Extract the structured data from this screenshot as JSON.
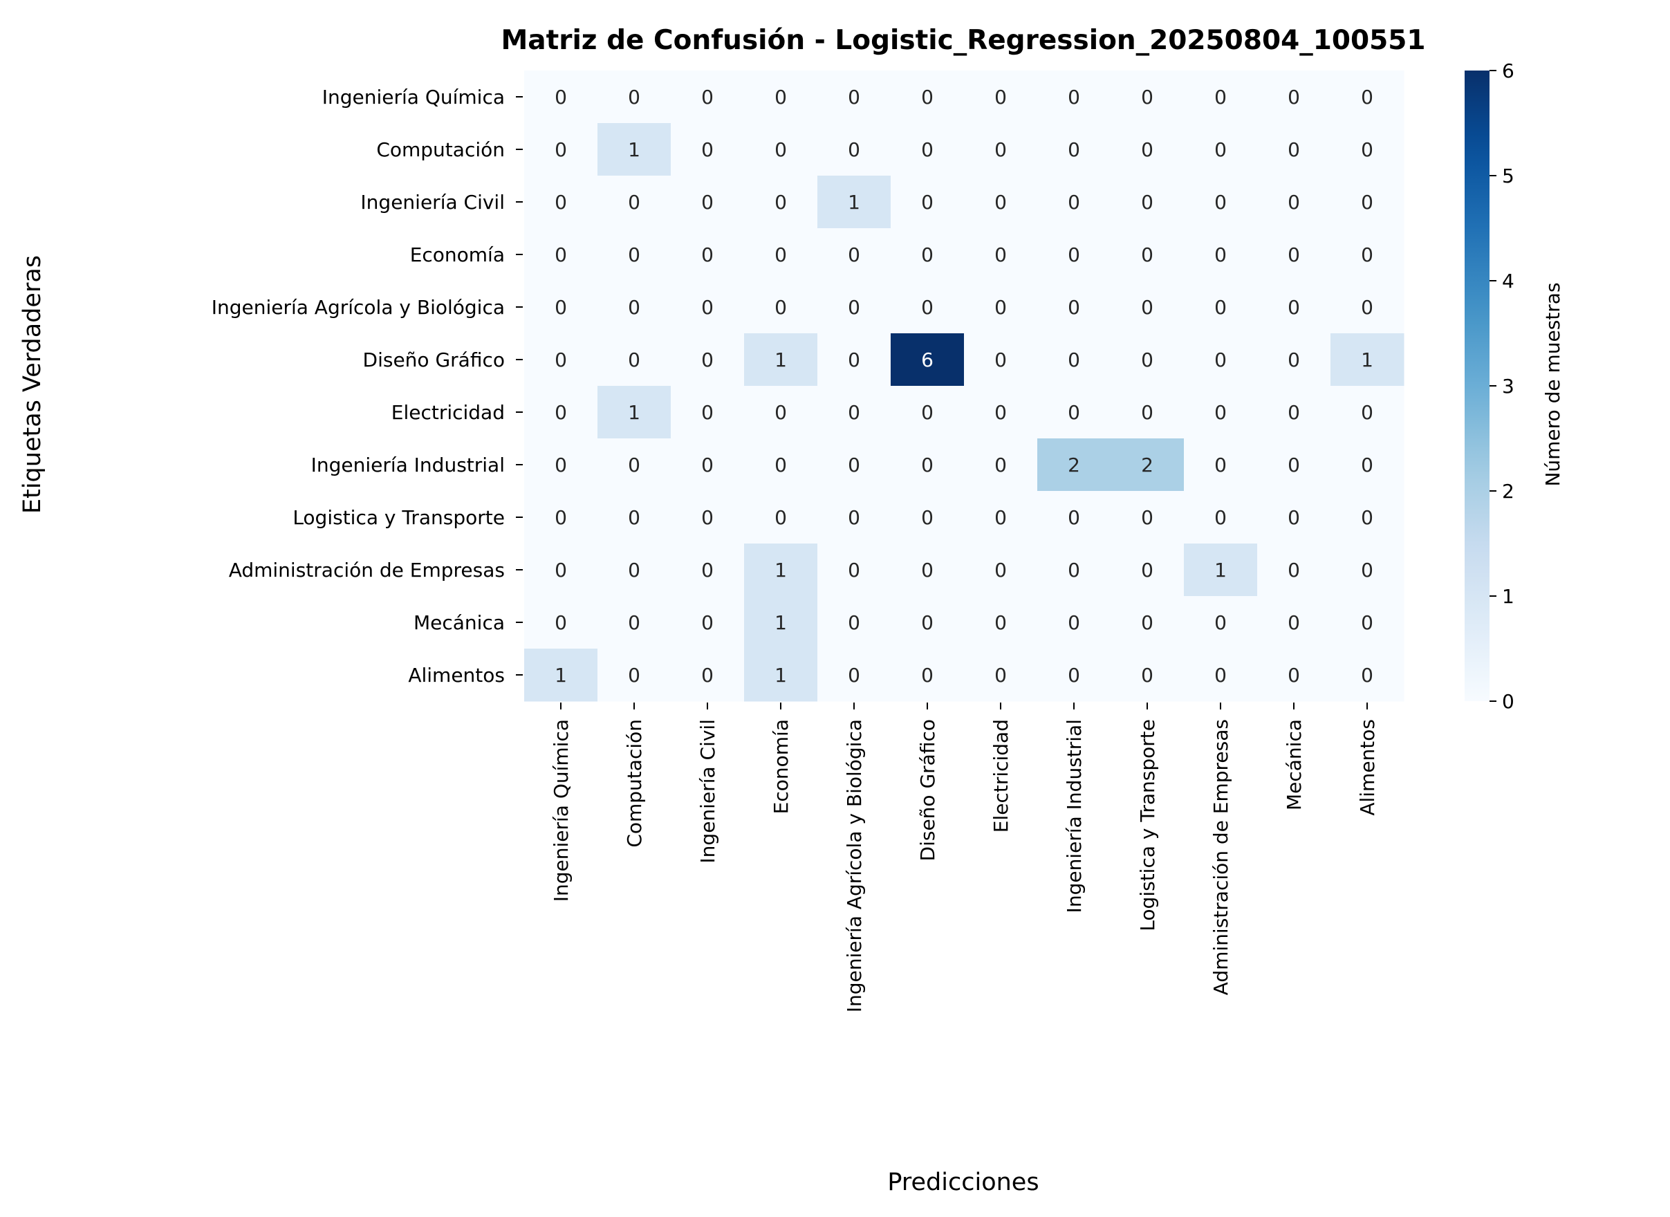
{
  "chart_data": {
    "type": "heatmap",
    "title": "Matriz de Confusión - Logistic_Regression_20250804_100551",
    "xlabel": "Predicciones",
    "ylabel": "Etiquetas Verdaderas",
    "row_labels": [
      "Ingeniería Química",
      "Computación",
      "Ingeniería  Civil",
      "Economía",
      "Ingeniería Agrícola y Biológica",
      "Diseño Gráfico",
      "Electricidad",
      "Ingeniería Industrial",
      "Logistica y Transporte",
      "Administración de Empresas",
      "Mecánica",
      "Alimentos"
    ],
    "col_labels": [
      "Ingeniería Química",
      "Computación",
      "Ingeniería  Civil",
      "Economía",
      "Ingeniería Agrícola y Biológica",
      "Diseño Gráfico",
      "Electricidad",
      "Ingeniería Industrial",
      "Logistica y Transporte",
      "Administración de Empresas",
      "Mecánica",
      "Alimentos"
    ],
    "values": [
      [
        0,
        0,
        0,
        0,
        0,
        0,
        0,
        0,
        0,
        0,
        0,
        0
      ],
      [
        0,
        1,
        0,
        0,
        0,
        0,
        0,
        0,
        0,
        0,
        0,
        0
      ],
      [
        0,
        0,
        0,
        0,
        1,
        0,
        0,
        0,
        0,
        0,
        0,
        0
      ],
      [
        0,
        0,
        0,
        0,
        0,
        0,
        0,
        0,
        0,
        0,
        0,
        0
      ],
      [
        0,
        0,
        0,
        0,
        0,
        0,
        0,
        0,
        0,
        0,
        0,
        0
      ],
      [
        0,
        0,
        0,
        1,
        0,
        6,
        0,
        0,
        0,
        0,
        0,
        1
      ],
      [
        0,
        1,
        0,
        0,
        0,
        0,
        0,
        0,
        0,
        0,
        0,
        0
      ],
      [
        0,
        0,
        0,
        0,
        0,
        0,
        0,
        2,
        2,
        0,
        0,
        0
      ],
      [
        0,
        0,
        0,
        0,
        0,
        0,
        0,
        0,
        0,
        0,
        0,
        0
      ],
      [
        0,
        0,
        0,
        1,
        0,
        0,
        0,
        0,
        0,
        1,
        0,
        0
      ],
      [
        0,
        0,
        0,
        1,
        0,
        0,
        0,
        0,
        0,
        0,
        0,
        0
      ],
      [
        1,
        0,
        0,
        1,
        0,
        0,
        0,
        0,
        0,
        0,
        0,
        0
      ]
    ],
    "colorbar": {
      "label": "Número de muestras",
      "ticks": [
        0,
        1,
        2,
        3,
        4,
        5,
        6
      ],
      "range": [
        0,
        6
      ],
      "colormap": "Blues"
    },
    "grid": false
  }
}
